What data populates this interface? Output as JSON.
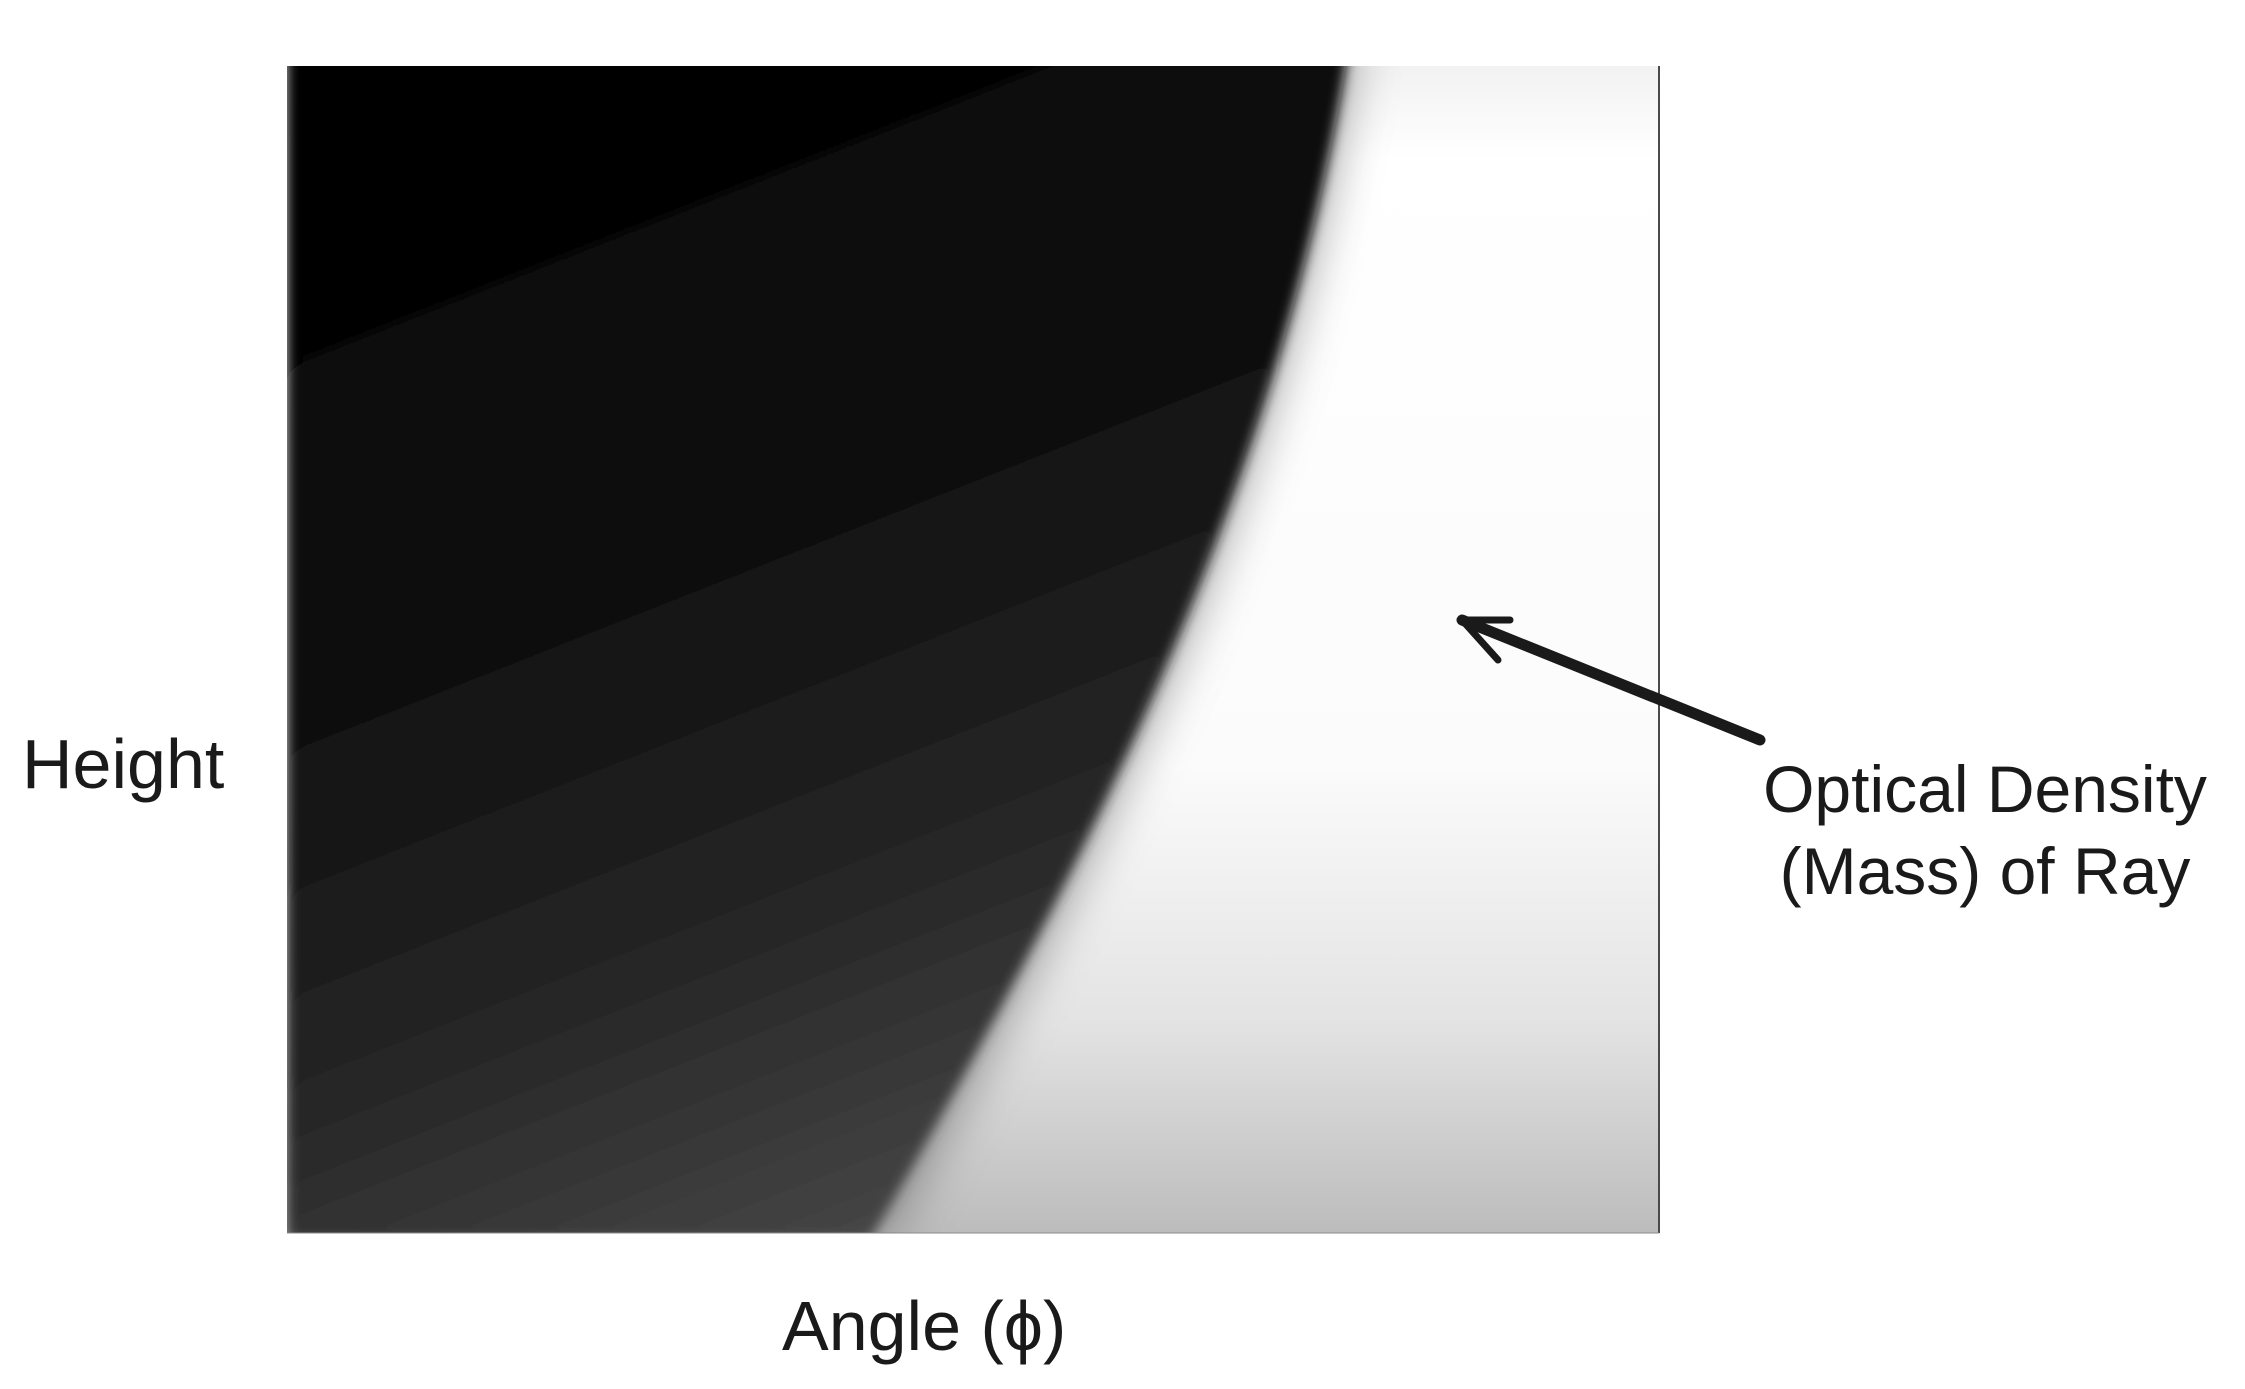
{
  "figure": {
    "y_axis_label": "Height",
    "x_axis_label": "Angle (ϕ)",
    "annotation": {
      "line1": "Optical Density",
      "line2": "(Mass) of Ray"
    }
  },
  "colors": {
    "dark_region_top": "#000000",
    "dark_region_bottom": "#3f3f3f",
    "light_region_top": "#ffffff",
    "light_region_bottom": "#bdbdbd",
    "frame": "#333333",
    "arrow": "#1a1a1a"
  },
  "icons": {
    "annotation_pointer": "arrow-left-up-icon"
  }
}
